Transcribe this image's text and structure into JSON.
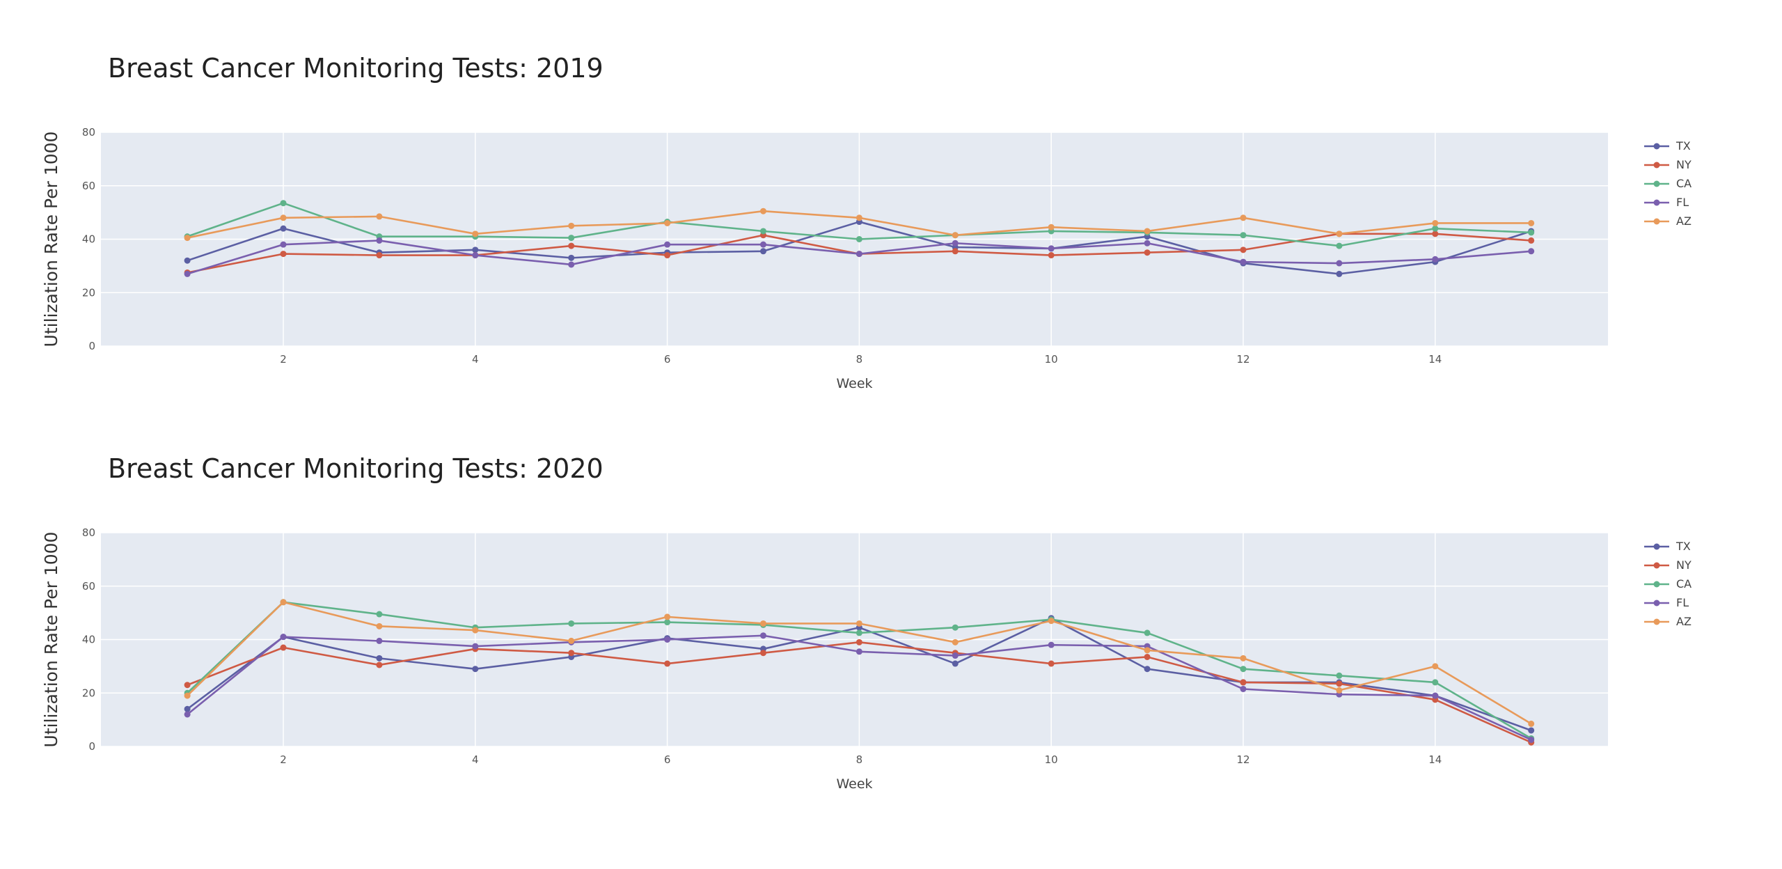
{
  "colors": {
    "TX": "#5b5fa3",
    "NY": "#cf5a44",
    "CA": "#5fb38a",
    "FL": "#7a5fae",
    "AZ": "#e89a5a",
    "plot_bg": "#e5eaf2",
    "grid": "#ffffff"
  },
  "chart_data": [
    {
      "type": "line",
      "title": "Breast Cancer Monitoring Tests: 2019",
      "xlabel": "Week",
      "ylabel": "Utilization Rate Per 1000",
      "x": [
        1,
        2,
        3,
        4,
        5,
        6,
        7,
        8,
        9,
        10,
        11,
        12,
        13,
        14,
        15
      ],
      "xlim": [
        0.1,
        15.8
      ],
      "ylim": [
        0,
        80
      ],
      "xticks": [
        2,
        4,
        6,
        8,
        10,
        12,
        14
      ],
      "xtick_labels": [
        "2",
        "4",
        "6",
        "8",
        "10",
        "12",
        "14"
      ],
      "yticks": [
        0,
        20,
        40,
        60,
        80
      ],
      "ytick_labels": [
        "0",
        "20",
        "40",
        "60",
        "80"
      ],
      "grid": true,
      "legend": "right",
      "series": [
        {
          "name": "TX",
          "values": [
            32,
            44,
            35,
            36,
            33,
            35,
            35.5,
            46.5,
            37,
            36.5,
            41,
            31,
            27,
            31.5,
            43
          ]
        },
        {
          "name": "NY",
          "values": [
            27.5,
            34.5,
            34,
            34,
            37.5,
            34,
            41.5,
            34.5,
            35.5,
            34,
            35,
            36,
            42,
            42,
            39.5
          ]
        },
        {
          "name": "CA",
          "values": [
            41,
            53.5,
            41,
            41,
            40.5,
            46.5,
            43,
            40,
            41.5,
            43,
            42.5,
            41.5,
            37.5,
            44,
            42.5
          ]
        },
        {
          "name": "FL",
          "values": [
            27,
            38,
            39.5,
            34,
            30.5,
            38,
            38,
            34.5,
            38.5,
            36.5,
            38.5,
            31.5,
            31,
            32.5,
            35.5
          ]
        },
        {
          "name": "AZ",
          "values": [
            40.5,
            48,
            48.5,
            42,
            45,
            46,
            50.5,
            48,
            41.5,
            44.5,
            43,
            48,
            42,
            46,
            46
          ]
        }
      ]
    },
    {
      "type": "line",
      "title": "Breast Cancer Monitoring Tests: 2020",
      "xlabel": "Week",
      "ylabel": "Utilization Rate Per 1000",
      "x": [
        1,
        2,
        3,
        4,
        5,
        6,
        7,
        8,
        9,
        10,
        11,
        12,
        13,
        14,
        15
      ],
      "xlim": [
        0.1,
        15.8
      ],
      "ylim": [
        0,
        80
      ],
      "xticks": [
        2,
        4,
        6,
        8,
        10,
        12,
        14
      ],
      "xtick_labels": [
        "2",
        "4",
        "6",
        "8",
        "10",
        "12",
        "14"
      ],
      "yticks": [
        0,
        20,
        40,
        60,
        80
      ],
      "ytick_labels": [
        "0",
        "20",
        "40",
        "60",
        "80"
      ],
      "grid": true,
      "legend": "right",
      "series": [
        {
          "name": "TX",
          "values": [
            14,
            41,
            33,
            29,
            33.5,
            40.5,
            36.5,
            44.5,
            31,
            48,
            29,
            24,
            24,
            19,
            6
          ]
        },
        {
          "name": "NY",
          "values": [
            23,
            37,
            30.5,
            36.5,
            35,
            31,
            35,
            39,
            35,
            31,
            33.5,
            24,
            23.5,
            17.5,
            1.5
          ]
        },
        {
          "name": "CA",
          "values": [
            20,
            54,
            49.5,
            44.5,
            46,
            46.5,
            45.5,
            42.5,
            44.5,
            47.5,
            42.5,
            29,
            26.5,
            24,
            3
          ]
        },
        {
          "name": "FL",
          "values": [
            12,
            41,
            39.5,
            37.5,
            39,
            40,
            41.5,
            35.5,
            34,
            38,
            37.5,
            21.5,
            19.5,
            19,
            2.5
          ]
        },
        {
          "name": "AZ",
          "values": [
            19,
            54,
            45,
            43.5,
            39.5,
            48.5,
            46,
            46,
            39,
            47,
            36,
            33,
            21,
            30,
            8.5
          ]
        }
      ]
    }
  ]
}
